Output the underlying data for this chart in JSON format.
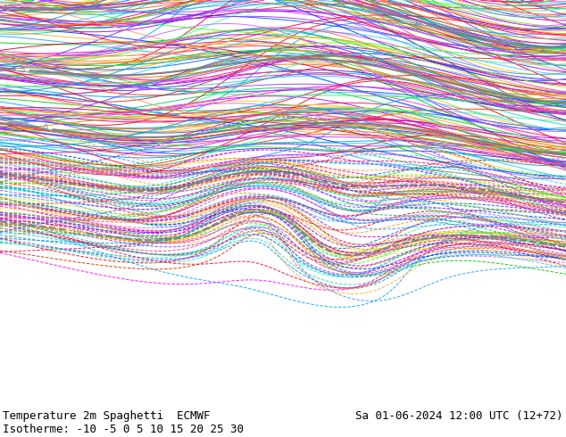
{
  "title_left": "Temperature 2m Spaghetti  ECMWF",
  "title_right": "Sa 01-06-2024 12:00 UTC (12+72)",
  "isotherm_label": "Isotherme: -10 -5 0 5 10 15 20 25 30",
  "background_color": "#ffffff",
  "land_color": "#c8e8b0",
  "ocean_color": "#e8e8e8",
  "text_color": "#000000",
  "font_size_title": 9,
  "font_size_isotherm": 9,
  "fig_width": 6.34,
  "fig_height": 4.9,
  "dpi": 100,
  "isotherms": [
    -10,
    -5,
    0,
    5,
    10,
    15,
    20,
    25,
    30
  ],
  "num_members": 51,
  "seed": 42,
  "bottom_bar_height": 0.065,
  "map_region": [
    -170,
    -50,
    10,
    85
  ],
  "spaghetti_line_colors": [
    "#ff0000",
    "#00aaff",
    "#ff00ff",
    "#ffaa00",
    "#00cc00",
    "#aa00ff",
    "#ff6600",
    "#0055ff",
    "#cc0066",
    "#00cccc",
    "#ff3300",
    "#6600ff",
    "#ff9900",
    "#0099ff",
    "#cc00cc",
    "#33cc00",
    "#ff0066",
    "#0033ff",
    "#ffcc00",
    "#00ff99",
    "#cc3300",
    "#9900ff",
    "#ff6633",
    "#3399ff",
    "#ff0099",
    "#00cc66",
    "#ff3366",
    "#6633ff",
    "#ff9933",
    "#33aaff",
    "#cc0033",
    "#33ff99",
    "#9933ff",
    "#ff6600",
    "#0066ff",
    "#ff0033",
    "#66ff00",
    "#cc66ff",
    "#ffaa33",
    "#00aacc",
    "#ff3399",
    "#33ccff",
    "#cc9900",
    "#ff33cc",
    "#0099cc",
    "#33ff33",
    "#aa33ff",
    "#ff9966",
    "#33cccc",
    "#cc33ff",
    "#ffcc33"
  ],
  "control_color": "#808080",
  "control_linewidth": 1.5,
  "member_linewidth": 0.7,
  "label_fontsize": 6
}
